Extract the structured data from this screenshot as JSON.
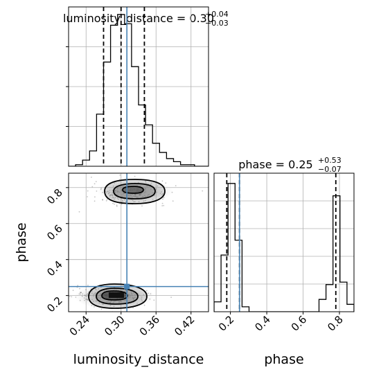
{
  "chart_data": {
    "type": "corner",
    "truth_color": "#4682b4",
    "line_color": "#000000",
    "grid": true,
    "parameters": [
      {
        "name": "luminosity_distance",
        "title": {
          "prefix": "luminosity_distance = ",
          "value": "0.30",
          "plus": "+0.04",
          "minus": "−0.03"
        },
        "range": [
          0.21,
          0.45
        ],
        "ticks": [
          "0.24",
          "0.30",
          "0.36",
          "0.42"
        ],
        "truth": 0.31,
        "quantiles": [
          0.27,
          0.3,
          0.34
        ],
        "histogram": {
          "edges": [
            0.21,
            0.222,
            0.234,
            0.246,
            0.258,
            0.27,
            0.282,
            0.294,
            0.306,
            0.318,
            0.33,
            0.342,
            0.354,
            0.366,
            0.378,
            0.39,
            0.402,
            0.414,
            0.426,
            0.438,
            0.45
          ],
          "values": [
            0,
            1,
            4,
            10,
            34,
            68,
            92,
            99,
            93,
            65,
            40,
            27,
            15,
            9,
            5,
            3,
            1,
            1,
            0,
            0
          ]
        }
      },
      {
        "name": "phase",
        "title": {
          "prefix": "phase = ",
          "value": "0.25",
          "plus": "+0.53",
          "minus": "−0.07"
        },
        "range": [
          0.11,
          0.88
        ],
        "ticks": [
          "0.2",
          "0.4",
          "0.6",
          "0.8"
        ],
        "truth": 0.25,
        "quantiles": [
          0.18,
          0.25,
          0.78
        ],
        "histogram": {
          "edges": [
            0.11,
            0.1485,
            0.187,
            0.2255,
            0.264,
            0.3025,
            0.341,
            0.3795,
            0.418,
            0.4565,
            0.495,
            0.5335,
            0.572,
            0.6105,
            0.649,
            0.6875,
            0.726,
            0.7645,
            0.803,
            0.8415,
            0.88
          ],
          "values": [
            4,
            23,
            52,
            29,
            2,
            0,
            0,
            0,
            0,
            0,
            0,
            0,
            0,
            0,
            0,
            5,
            11,
            47,
            12,
            3
          ]
        }
      }
    ]
  }
}
